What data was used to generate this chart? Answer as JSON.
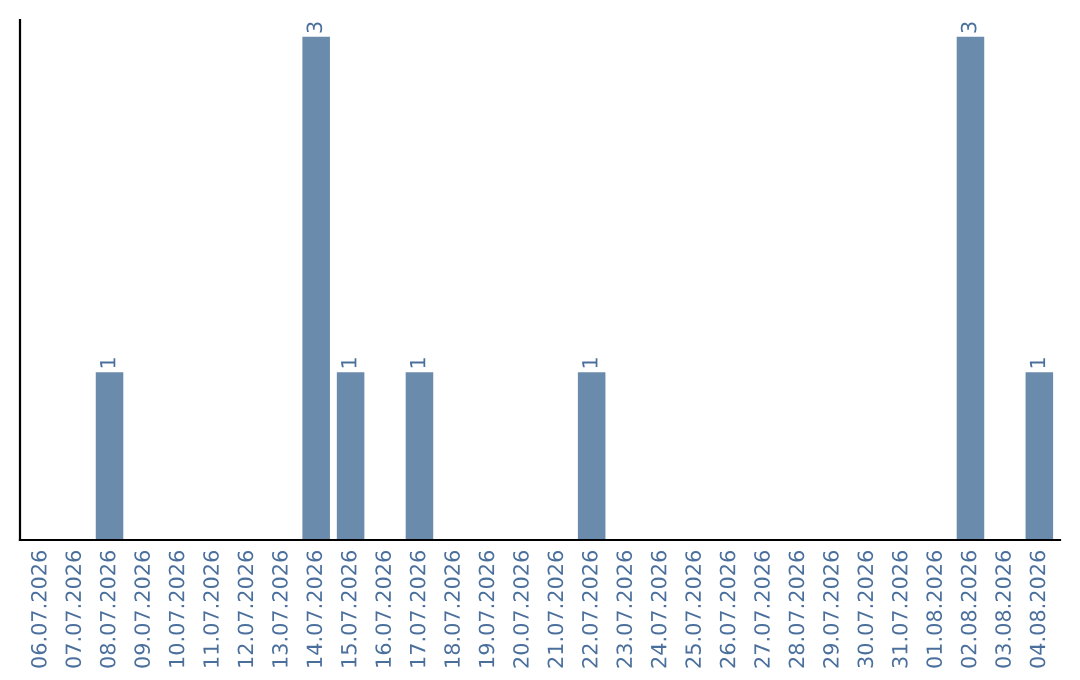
{
  "chart_data": {
    "type": "bar",
    "categories": [
      "06.07.2026",
      "07.07.2026",
      "08.07.2026",
      "09.07.2026",
      "10.07.2026",
      "11.07.2026",
      "12.07.2026",
      "13.07.2026",
      "14.07.2026",
      "15.07.2026",
      "16.07.2026",
      "17.07.2026",
      "18.07.2026",
      "19.07.2026",
      "20.07.2026",
      "21.07.2026",
      "22.07.2026",
      "23.07.2026",
      "24.07.2026",
      "25.07.2026",
      "26.07.2026",
      "27.07.2026",
      "28.07.2026",
      "29.07.2026",
      "30.07.2026",
      "31.07.2026",
      "01.08.2026",
      "02.08.2026",
      "03.08.2026",
      "04.08.2026"
    ],
    "values": [
      0,
      0,
      1,
      0,
      0,
      0,
      0,
      0,
      3,
      1,
      0,
      1,
      0,
      0,
      0,
      0,
      1,
      0,
      0,
      0,
      0,
      0,
      0,
      0,
      0,
      0,
      0,
      3,
      0,
      1
    ],
    "value_labels": [
      null,
      null,
      "1",
      null,
      null,
      null,
      null,
      null,
      "3",
      "1",
      null,
      "1",
      null,
      null,
      null,
      null,
      "1",
      null,
      null,
      null,
      null,
      null,
      null,
      null,
      null,
      null,
      null,
      "3",
      null,
      "1"
    ],
    "color": "#6a8bab",
    "ylim": [
      0,
      3.1
    ],
    "tick_labels": "x",
    "grid": false,
    "legend": false
  }
}
